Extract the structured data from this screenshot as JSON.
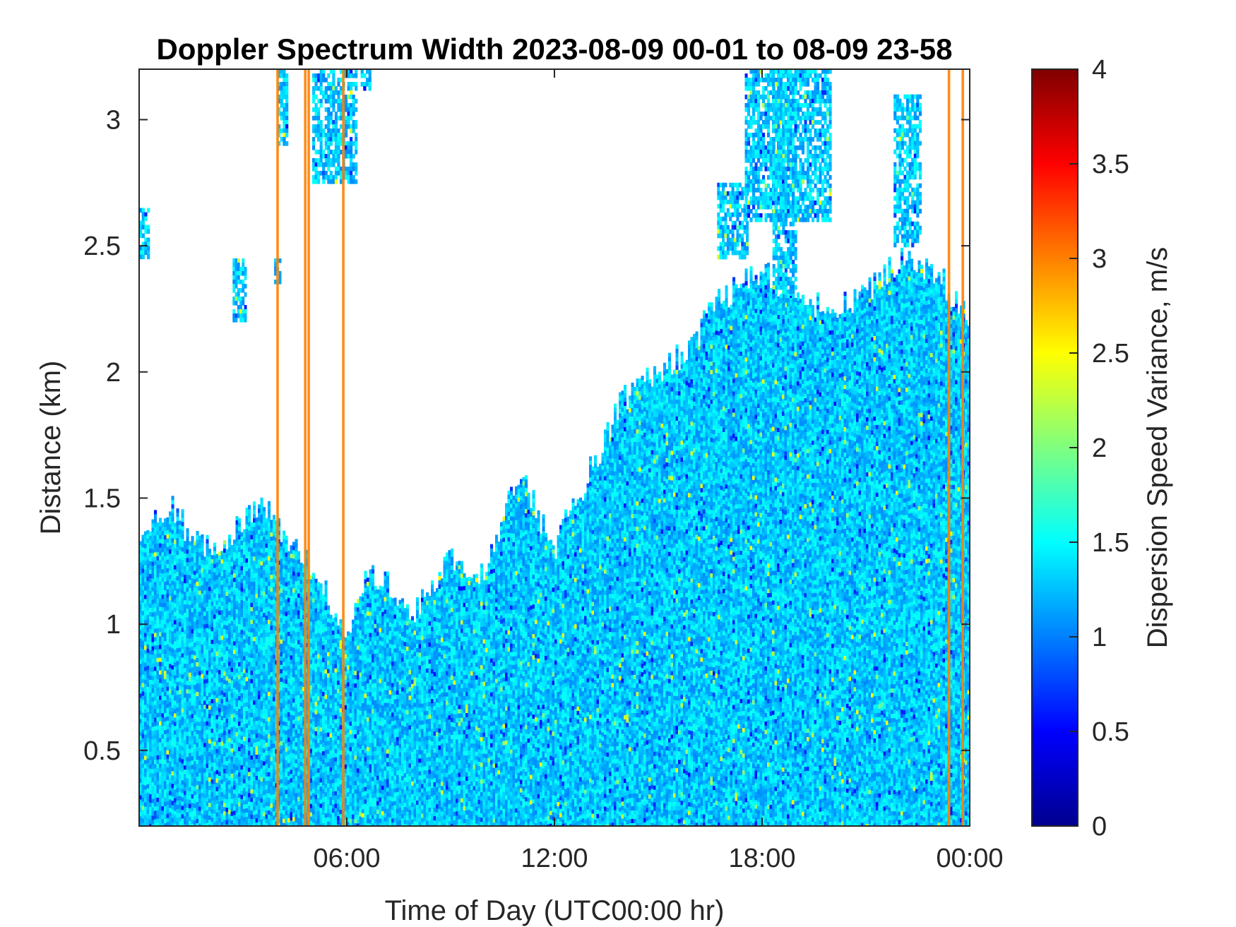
{
  "chart_data": {
    "type": "heatmap",
    "title": "Doppler Spectrum Width 2023-08-09 00-01 to 08-09 23-58",
    "xlabel": "Time of Day (UTC00:00 hr)",
    "ylabel": "Distance (km)",
    "colorbar_label": "Dispersion Speed Variance, m/s",
    "x_range_hours": [
      0,
      24
    ],
    "x_ticks": [
      {
        "hour": 6,
        "label": "06:00"
      },
      {
        "hour": 12,
        "label": "12:00"
      },
      {
        "hour": 18,
        "label": "18:00"
      },
      {
        "hour": 24,
        "label": "00:00"
      }
    ],
    "ylim": [
      0.2,
      3.2
    ],
    "y_ticks": [
      {
        "value": 0.5,
        "label": "0.5"
      },
      {
        "value": 1,
        "label": "1"
      },
      {
        "value": 1.5,
        "label": "1.5"
      },
      {
        "value": 2,
        "label": "2"
      },
      {
        "value": 2.5,
        "label": "2.5"
      },
      {
        "value": 3,
        "label": "3"
      }
    ],
    "clim": [
      0,
      4
    ],
    "colorbar_ticks": [
      {
        "value": 0,
        "label": "0"
      },
      {
        "value": 0.5,
        "label": "0.5"
      },
      {
        "value": 1,
        "label": "1"
      },
      {
        "value": 1.5,
        "label": "1.5"
      },
      {
        "value": 2,
        "label": "2"
      },
      {
        "value": 2.5,
        "label": "2.5"
      },
      {
        "value": 3,
        "label": "3"
      },
      {
        "value": 3.5,
        "label": "3.5"
      },
      {
        "value": 4,
        "label": "4"
      }
    ],
    "colormap": "jet",
    "grid": false,
    "typical_value_ms": 1.3,
    "data_top_km": [
      {
        "hour": 0.0,
        "top_km": 1.3
      },
      {
        "hour": 0.5,
        "top_km": 1.45
      },
      {
        "hour": 1.0,
        "top_km": 1.45
      },
      {
        "hour": 1.5,
        "top_km": 1.35
      },
      {
        "hour": 2.0,
        "top_km": 1.3
      },
      {
        "hour": 2.5,
        "top_km": 1.35
      },
      {
        "hour": 3.0,
        "top_km": 1.4
      },
      {
        "hour": 3.5,
        "top_km": 1.5
      },
      {
        "hour": 4.0,
        "top_km": 1.4
      },
      {
        "hour": 4.5,
        "top_km": 1.3
      },
      {
        "hour": 5.0,
        "top_km": 1.2
      },
      {
        "hour": 5.5,
        "top_km": 1.1
      },
      {
        "hour": 5.9,
        "top_km": 0.95
      },
      {
        "hour": 6.5,
        "top_km": 1.15
      },
      {
        "hour": 7.0,
        "top_km": 1.2
      },
      {
        "hour": 8.0,
        "top_km": 1.05
      },
      {
        "hour": 9.0,
        "top_km": 1.25
      },
      {
        "hour": 10.0,
        "top_km": 1.2
      },
      {
        "hour": 11.0,
        "top_km": 1.6
      },
      {
        "hour": 12.0,
        "top_km": 1.3
      },
      {
        "hour": 12.5,
        "top_km": 1.45
      },
      {
        "hour": 13.0,
        "top_km": 1.6
      },
      {
        "hour": 14.0,
        "top_km": 1.9
      },
      {
        "hour": 15.0,
        "top_km": 2.0
      },
      {
        "hour": 16.0,
        "top_km": 2.1
      },
      {
        "hour": 16.5,
        "top_km": 2.25
      },
      {
        "hour": 17.0,
        "top_km": 2.3
      },
      {
        "hour": 18.0,
        "top_km": 2.4
      },
      {
        "hour": 19.0,
        "top_km": 2.3
      },
      {
        "hour": 20.0,
        "top_km": 2.25
      },
      {
        "hour": 21.0,
        "top_km": 2.3
      },
      {
        "hour": 22.0,
        "top_km": 2.45
      },
      {
        "hour": 23.0,
        "top_km": 2.4
      },
      {
        "hour": 24.0,
        "top_km": 2.2
      }
    ],
    "upper_patches": [
      {
        "h0": 16.7,
        "h1": 17.6,
        "km0": 2.45,
        "km1": 2.75
      },
      {
        "h0": 17.5,
        "h1": 20.0,
        "km0": 2.6,
        "km1": 3.2
      },
      {
        "h0": 18.3,
        "h1": 19.0,
        "km0": 2.2,
        "km1": 3.2
      },
      {
        "h0": 5.0,
        "h1": 6.3,
        "km0": 2.75,
        "km1": 3.2
      },
      {
        "h0": 6.4,
        "h1": 6.7,
        "km0": 3.12,
        "km1": 3.2
      },
      {
        "h0": 2.7,
        "h1": 3.1,
        "km0": 2.2,
        "km1": 2.45
      },
      {
        "h0": 3.9,
        "h1": 4.1,
        "km0": 2.35,
        "km1": 2.45
      },
      {
        "h0": 0.0,
        "h1": 0.3,
        "km0": 2.45,
        "km1": 2.65
      },
      {
        "h0": 4.0,
        "h1": 4.3,
        "km0": 2.9,
        "km1": 3.2
      },
      {
        "h0": 21.8,
        "h1": 22.6,
        "km0": 2.5,
        "km1": 3.1
      }
    ],
    "high_value_columns": [
      {
        "hour": 4.0,
        "value": 3.0
      },
      {
        "hour": 4.8,
        "value": 3.0
      },
      {
        "hour": 4.9,
        "value": 3.0
      },
      {
        "hour": 5.9,
        "value": 3.0
      },
      {
        "hour": 23.4,
        "value": 3.0
      },
      {
        "hour": 23.8,
        "value": 3.0
      }
    ]
  }
}
